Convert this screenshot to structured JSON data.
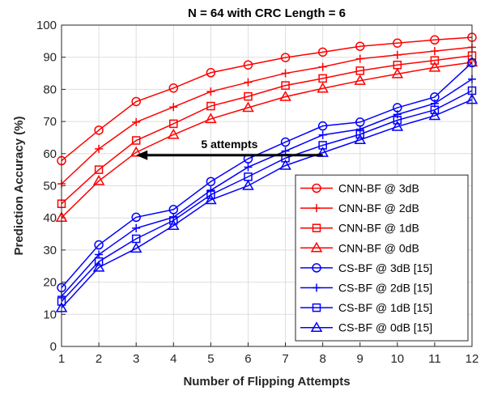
{
  "chart_data": {
    "type": "line",
    "title": "N = 64 with CRC Length = 6",
    "xlabel": "Number of Flipping Attempts",
    "ylabel": "Prediction Accuracy (%)",
    "x": [
      1,
      2,
      3,
      4,
      5,
      6,
      7,
      8,
      9,
      10,
      11,
      12
    ],
    "xlim": [
      1,
      12
    ],
    "ylim": [
      0,
      100
    ],
    "yticks": [
      0,
      10,
      20,
      30,
      40,
      50,
      60,
      70,
      80,
      90,
      100
    ],
    "grid": true,
    "legend_position": "bottom-right",
    "series": [
      {
        "name": "CNN-BF @ 3dB",
        "color": "#ff0000",
        "marker": "circle",
        "values": [
          57.8,
          67.3,
          76.2,
          80.4,
          85.2,
          87.6,
          89.9,
          91.6,
          93.4,
          94.4,
          95.4,
          96.2
        ]
      },
      {
        "name": "CNN-BF @ 2dB",
        "color": "#ff0000",
        "marker": "plus",
        "values": [
          50.6,
          61.5,
          69.8,
          74.5,
          79.3,
          82.2,
          85.0,
          87.0,
          89.5,
          90.7,
          91.9,
          93.1
        ]
      },
      {
        "name": "CNN-BF @ 1dB",
        "color": "#ff0000",
        "marker": "square",
        "values": [
          44.4,
          55.0,
          64.1,
          69.3,
          74.8,
          77.8,
          81.2,
          83.4,
          85.8,
          87.6,
          89.0,
          90.5
        ]
      },
      {
        "name": "CNN-BF @ 0dB",
        "color": "#ff0000",
        "marker": "triangle",
        "values": [
          40.1,
          51.5,
          60.4,
          65.9,
          70.8,
          74.3,
          77.7,
          80.3,
          82.7,
          84.8,
          86.8,
          88.4
        ]
      },
      {
        "name": "CS-BF @ 3dB [15]",
        "color": "#0000ff",
        "marker": "circle",
        "values": [
          18.3,
          31.6,
          40.2,
          42.6,
          51.3,
          58.4,
          63.6,
          68.6,
          69.8,
          74.3,
          77.6,
          88.3
        ]
      },
      {
        "name": "CS-BF @ 2dB [15]",
        "color": "#0000ff",
        "marker": "plus",
        "values": [
          15.6,
          28.6,
          36.8,
          40.2,
          48.6,
          55.8,
          60.8,
          65.8,
          67.6,
          72.2,
          75.6,
          83.2
        ]
      },
      {
        "name": "CS-BF @ 1dB [15]",
        "color": "#0000ff",
        "marker": "square",
        "values": [
          14.0,
          26.4,
          33.5,
          39.2,
          47.2,
          52.8,
          58.6,
          62.6,
          66.0,
          70.4,
          73.6,
          79.6
        ]
      },
      {
        "name": "CS-BF @ 0dB [15]",
        "color": "#0000ff",
        "marker": "triangle",
        "values": [
          12.0,
          24.6,
          30.5,
          37.6,
          45.6,
          50.0,
          56.3,
          60.3,
          64.3,
          68.4,
          71.8,
          76.8
        ]
      }
    ],
    "annotations": [
      {
        "text": "5 attempts",
        "arrow_from": [
          8,
          59.5
        ],
        "arrow_to": [
          3,
          59.5
        ]
      }
    ]
  }
}
